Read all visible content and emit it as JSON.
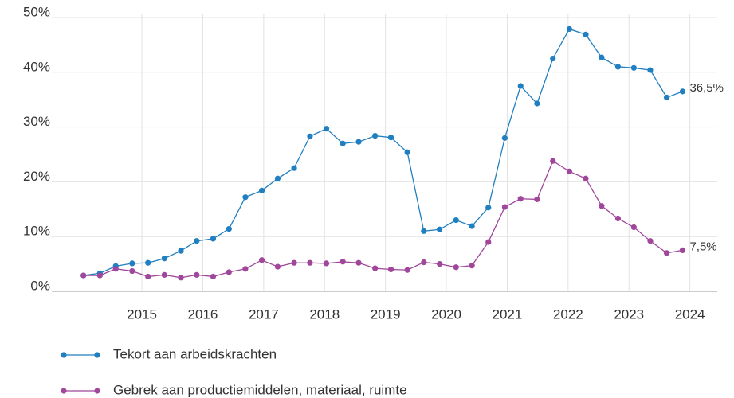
{
  "chart_data": {
    "type": "line",
    "x": [
      2014.04,
      2014.31,
      2014.57,
      2014.84,
      2015.1,
      2015.37,
      2015.64,
      2015.9,
      2016.17,
      2016.43,
      2016.7,
      2016.97,
      2017.23,
      2017.5,
      2017.76,
      2018.03,
      2018.3,
      2018.56,
      2018.83,
      2019.09,
      2019.36,
      2019.63,
      2019.89,
      2020.16,
      2020.42,
      2020.69,
      2020.96,
      2021.22,
      2021.49,
      2021.75,
      2022.02,
      2022.29,
      2022.55,
      2022.82,
      2023.08,
      2023.35,
      2023.62,
      2023.88
    ],
    "series": [
      {
        "name": "Tekort aan arbeidskrachten",
        "color": "#1f7fc1",
        "values": [
          2.9,
          3.3,
          4.6,
          5.1,
          5.2,
          6.0,
          7.4,
          9.2,
          9.6,
          11.4,
          17.2,
          18.4,
          20.6,
          22.5,
          28.3,
          29.7,
          27.0,
          27.3,
          28.4,
          28.1,
          25.4,
          11.0,
          11.3,
          13.0,
          11.9,
          15.3,
          28.0,
          37.5,
          34.3,
          42.5,
          47.9,
          46.9,
          42.7,
          41.0,
          40.8,
          40.4,
          35.4,
          36.5
        ],
        "value_labels": [
          null,
          null,
          null,
          null,
          null,
          null,
          null,
          null,
          null,
          null,
          null,
          null,
          null,
          null,
          null,
          null,
          null,
          null,
          null,
          null,
          null,
          null,
          null,
          null,
          null,
          null,
          null,
          null,
          null,
          null,
          null,
          null,
          null,
          null,
          null,
          null,
          null,
          "36,5%"
        ]
      },
      {
        "name": "Gebrek aan productiemiddelen, materiaal, ruimte",
        "color": "#a0469b",
        "values": [
          2.9,
          2.9,
          4.1,
          3.7,
          2.7,
          3.0,
          2.5,
          3.0,
          2.7,
          3.5,
          4.1,
          5.7,
          4.5,
          5.2,
          5.2,
          5.1,
          5.4,
          5.2,
          4.2,
          4.0,
          3.9,
          5.3,
          5.0,
          4.4,
          4.7,
          9.0,
          15.4,
          16.9,
          16.8,
          23.8,
          21.9,
          20.6,
          15.6,
          13.3,
          11.7,
          9.2,
          7.0,
          7.5
        ],
        "value_labels": [
          null,
          null,
          null,
          null,
          null,
          null,
          null,
          null,
          null,
          null,
          null,
          null,
          null,
          null,
          null,
          null,
          null,
          null,
          null,
          null,
          null,
          null,
          null,
          null,
          null,
          null,
          null,
          null,
          null,
          null,
          null,
          null,
          null,
          null,
          null,
          null,
          null,
          "7,5%"
        ]
      }
    ],
    "xlim": [
      2013.52,
      2024.45
    ],
    "xticks": [
      2015,
      2016,
      2017,
      2018,
      2019,
      2020,
      2021,
      2022,
      2023,
      2024
    ],
    "ylim": [
      0,
      50
    ],
    "yticks": [
      {
        "value": 0,
        "label": "0%"
      },
      {
        "value": 10,
        "label": "10%"
      },
      {
        "value": 20,
        "label": "20%"
      },
      {
        "value": 30,
        "label": "30%"
      },
      {
        "value": 40,
        "label": "40%"
      },
      {
        "value": 50,
        "label": "50%"
      }
    ],
    "grid": true,
    "legend": "bottom"
  }
}
